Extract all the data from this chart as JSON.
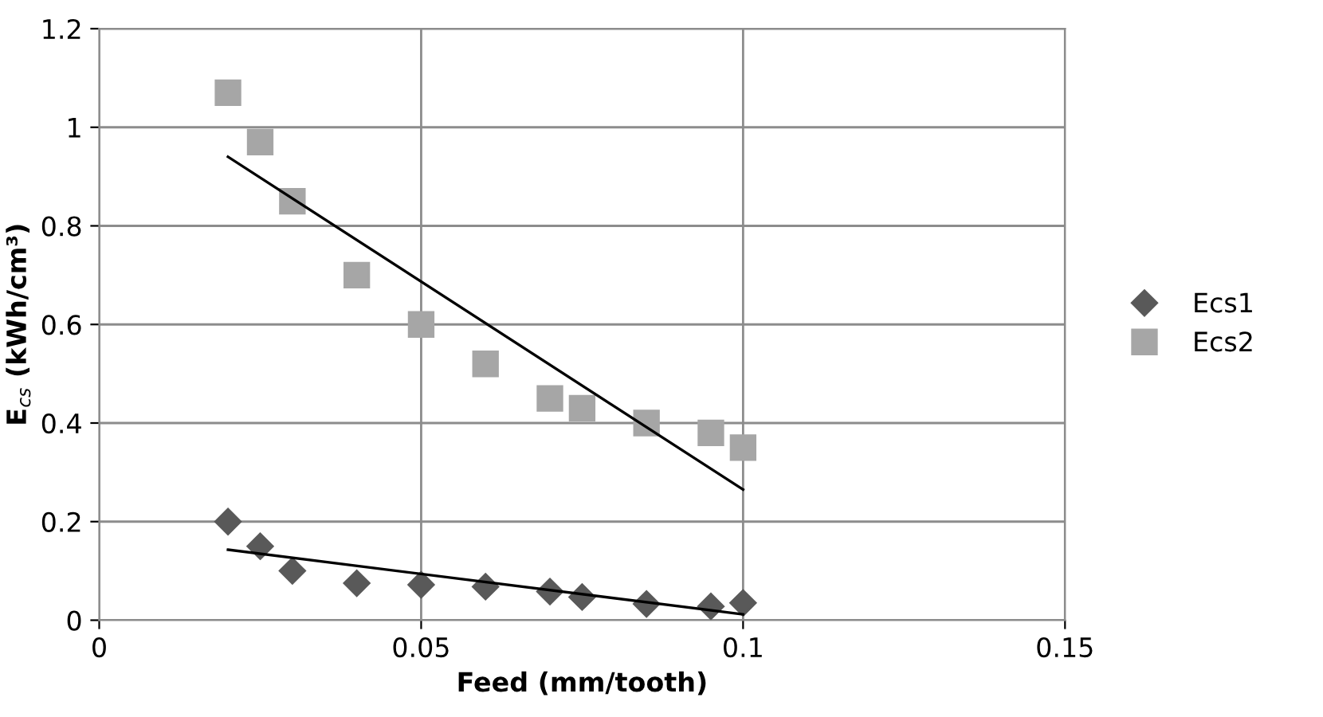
{
  "chart_data": {
    "type": "scatter",
    "xlabel": "Feed (mm/tooth)",
    "ylabel": "E$_{cs}$ (kWh/cm³)",
    "xlim": [
      0,
      0.15
    ],
    "xticks": [
      0,
      0.05,
      0.1,
      0.15
    ],
    "ylim": [
      0,
      1.2
    ],
    "yticks": [
      0,
      0.2,
      0.4,
      0.6,
      0.8,
      1,
      1.2
    ],
    "grid": true,
    "legend": "right",
    "series": [
      {
        "name": "Ecs1",
        "marker": "diamond",
        "color": "#595959",
        "x": [
          0.02,
          0.025,
          0.03,
          0.04,
          0.05,
          0.06,
          0.07,
          0.075,
          0.085,
          0.095,
          0.1
        ],
        "values": [
          0.2,
          0.15,
          0.1,
          0.075,
          0.072,
          0.068,
          0.058,
          0.047,
          0.033,
          0.028,
          0.035
        ]
      },
      {
        "name": "Ecs2",
        "marker": "square",
        "color": "#a6a6a6",
        "x": [
          0.02,
          0.025,
          0.03,
          0.04,
          0.05,
          0.06,
          0.07,
          0.075,
          0.085,
          0.095,
          0.1
        ],
        "values": [
          1.07,
          0.97,
          0.85,
          0.7,
          0.6,
          0.52,
          0.45,
          0.43,
          0.4,
          0.38,
          0.35
        ]
      },
      {
        "type": "line",
        "color": "#000000",
        "x": [
          0.02,
          0.1
        ],
        "values": [
          0.143,
          0.012
        ]
      },
      {
        "type": "line",
        "color": "#000000",
        "x": [
          0.02,
          0.1
        ],
        "values": [
          0.94,
          0.265
        ]
      }
    ]
  }
}
